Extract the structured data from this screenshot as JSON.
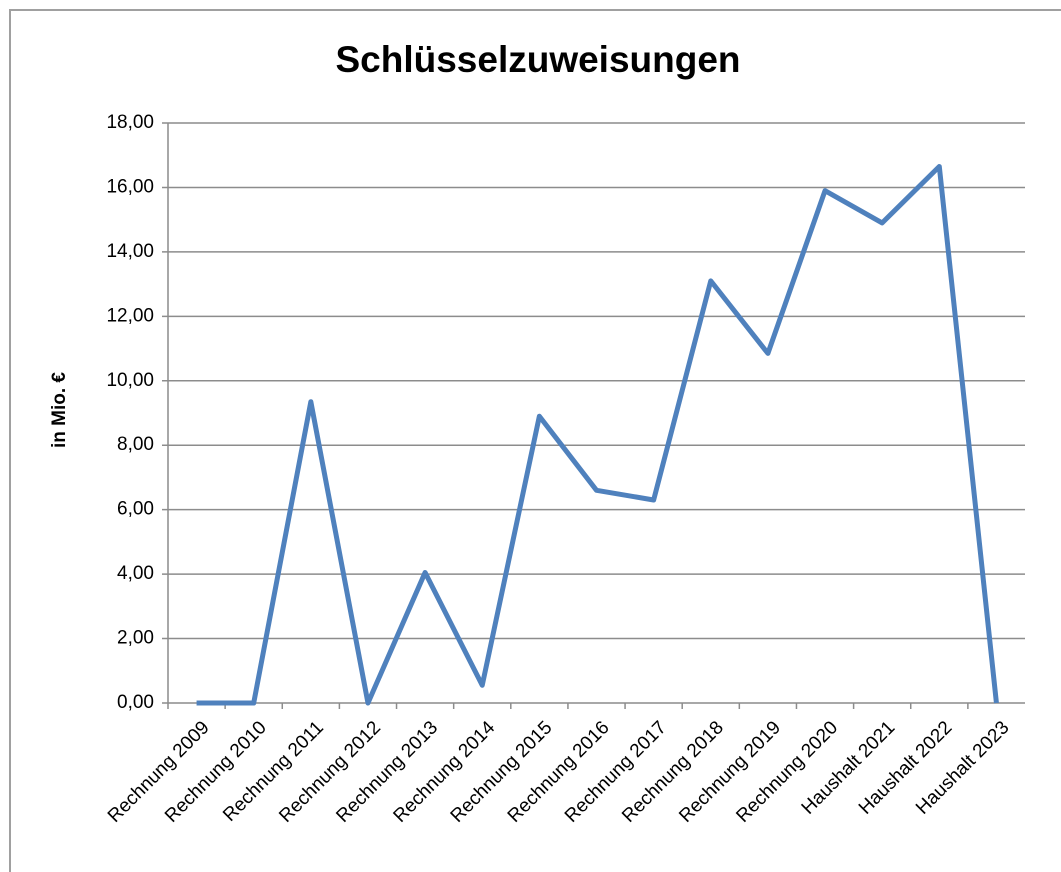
{
  "chart_data": {
    "type": "line",
    "title": "Schlüsselzuweisungen",
    "y_label": "in Mio. €",
    "categories": [
      "Rechnung 2009",
      "Rechnung 2010",
      "Rechnung 2011",
      "Rechnung 2012",
      "Rechnung 2013",
      "Rechnung 2014",
      "Rechnung 2015",
      "Rechnung 2016",
      "Rechnung 2017",
      "Rechnung 2018",
      "Rechnung 2019",
      "Rechnung 2020",
      "Haushalt 2021",
      "Haushalt 2022",
      "Haushalt 2023"
    ],
    "series": [
      {
        "name": "Schlüsselzuweisungen",
        "color": "#4f81bd",
        "values": [
          0,
          0,
          9.35,
          0,
          4.05,
          0.55,
          8.9,
          6.6,
          6.3,
          13.1,
          10.85,
          15.9,
          14.9,
          16.65,
          0
        ]
      }
    ],
    "ylim": [
      0,
      18
    ],
    "yticks": [
      {
        "value": 0,
        "label": "0,00"
      },
      {
        "value": 2,
        "label": "2,00"
      },
      {
        "value": 4,
        "label": "4,00"
      },
      {
        "value": 6,
        "label": "6,00"
      },
      {
        "value": 8,
        "label": "8,00"
      },
      {
        "value": 10,
        "label": "10,00"
      },
      {
        "value": 12,
        "label": "12,00"
      },
      {
        "value": 14,
        "label": "14,00"
      },
      {
        "value": 16,
        "label": "16,00"
      },
      {
        "value": 18,
        "label": "18,00"
      }
    ],
    "grid": true
  }
}
